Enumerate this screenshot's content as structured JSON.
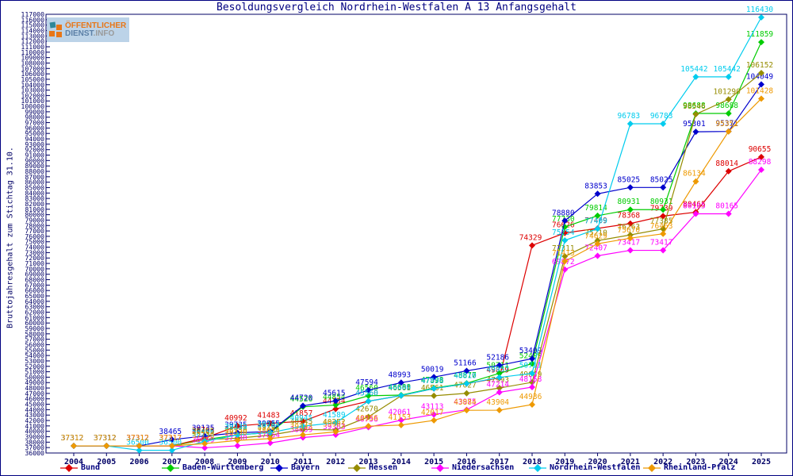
{
  "header": {
    "title": "Besoldungsvergleich Nordrhein-Westfalen A 13 Anfangsgehalt",
    "logo": {
      "line1": "ÖFFENTLICHER",
      "line2_a": "DIENST",
      "line2_b": ".INFO"
    }
  },
  "axes": {
    "y_title": "Bruttojahresgehalt zum Stichtag 31.10.",
    "y_min": 36000,
    "y_max": 117000,
    "y_step": 1000,
    "x_ticks": [
      2004,
      2005,
      2006,
      2007,
      2008,
      2009,
      2010,
      2011,
      2012,
      2013,
      2014,
      2015,
      2016,
      2017,
      2018,
      2019,
      2020,
      2021,
      2022,
      2023,
      2024,
      2025
    ]
  },
  "colors": {
    "axis": "#000066",
    "title": "#000080",
    "bund": "#dd0000",
    "baden_wuerttemberg": "#00cc00",
    "bayern": "#0000cc",
    "hessen": "#968c00",
    "niedersachsen": "#ff00ff",
    "nordrhein_westfalen": "#00ccee",
    "rheinland_pfalz": "#ee9900"
  },
  "chart_data": {
    "type": "line",
    "title": "Besoldungsvergleich Nordrhein-Westfalen A 13 Anfangsgehalt",
    "xlabel": "",
    "ylabel": "Bruttojahresgehalt zum Stichtag 31.10.",
    "ylim": [
      36000,
      117000
    ],
    "grid": false,
    "legend_position": "bottom",
    "x": [
      2004,
      2005,
      2006,
      2007,
      2008,
      2009,
      2010,
      2011,
      2012,
      2013,
      2014,
      2015,
      2016,
      2017,
      2018,
      2019,
      2020,
      2021,
      2022,
      2023,
      2024,
      2025
    ],
    "series": [
      {
        "name": "Bund",
        "color": "#dd0000",
        "values": [
          37312,
          37312,
          37312,
          37317,
          38763,
          40992,
          41483,
          41857,
          44134,
          45560,
          46600,
          47898,
          48810,
          49859,
          74329,
          76626,
          77469,
          78368,
          79739,
          80465,
          88014,
          90655
        ]
      },
      {
        "name": "Baden-Württemberg",
        "color": "#00cc00",
        "values": [
          37312,
          37312,
          37312,
          37317,
          38465,
          39339,
          39764,
          44526,
          44854,
          46560,
          46688,
          47998,
          48877,
          50711,
          52499,
          77730,
          79814,
          80931,
          80931,
          98688,
          98688,
          111859
        ]
      },
      {
        "name": "Bayern",
        "color": "#0000cc",
        "values": [
          37312,
          37312,
          37312,
          38465,
          39135,
          39735,
          39955,
          44720,
          45615,
          47594,
          48993,
          50019,
          51166,
          52186,
          53409,
          78880,
          83853,
          85025,
          85025,
          95301,
          95371,
          104049
        ]
      },
      {
        "name": "Hessen",
        "color": "#968c00",
        "values": [
          37312,
          37312,
          37312,
          37317,
          38465,
          38730,
          39292,
          40345,
          40252,
          42670,
          46561,
          46561,
          47027,
          47993,
          49049,
          72311,
          75210,
          76263,
          77385,
          98546,
          101290,
          106152
        ]
      },
      {
        "name": "Niedersachsen",
        "color": "#ff00ff",
        "values": [
          37312,
          37312,
          37312,
          37317,
          36959,
          37330,
          37854,
          38859,
          39363,
          40756,
          42061,
          43113,
          43975,
          47214,
          48158,
          69872,
          72407,
          73417,
          73417,
          80165,
          80165,
          88298
        ]
      },
      {
        "name": "Nordrhein-Westfalen",
        "color": "#00ccee",
        "values": [
          37312,
          37312,
          36500,
          36500,
          38135,
          39339,
          39764,
          40945,
          41589,
          45560,
          46600,
          47898,
          48810,
          49957,
          50711,
          75254,
          77409,
          96783,
          96783,
          105442,
          105442,
          116430
        ]
      },
      {
        "name": "Rheinland-Pfalz",
        "color": "#ee9900",
        "values": [
          37312,
          37312,
          37312,
          37317,
          37730,
          38330,
          38654,
          39343,
          39901,
          40956,
          41153,
          42017,
          43884,
          43904,
          44936,
          71413,
          74629,
          75670,
          76463,
          86134,
          95351,
          101428
        ]
      }
    ]
  }
}
